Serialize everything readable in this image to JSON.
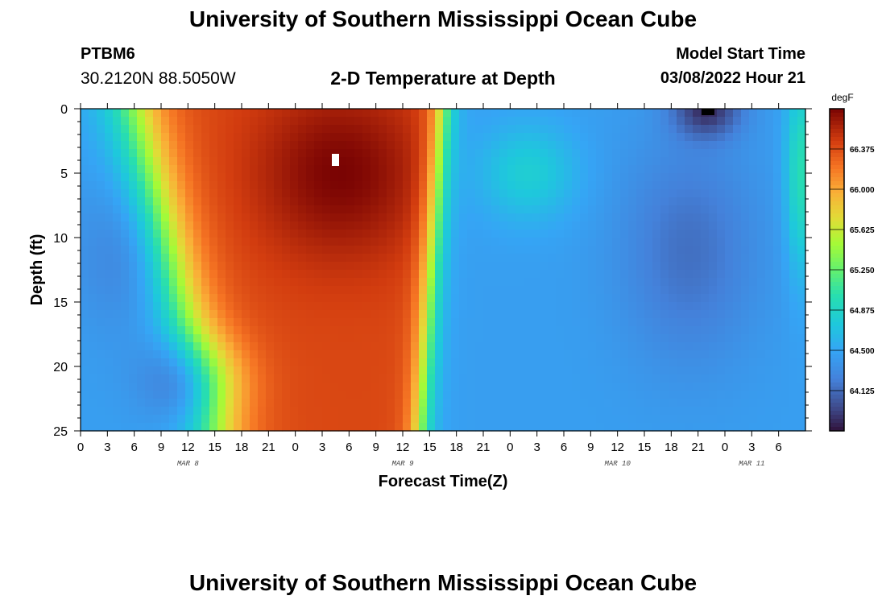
{
  "header": {
    "title": "University of Southern Mississippi Ocean Cube",
    "station_id": "PTBM6",
    "station_coords": "30.2120N  88.5050W",
    "chart_title": "2-D Temperature at Depth",
    "model_start_label": "Model Start Time",
    "model_start_value": "03/08/2022 Hour 21"
  },
  "footer": {
    "title": "University of Southern Mississippi Ocean Cube"
  },
  "chart_data": {
    "type": "heatmap",
    "xlabel": "Forecast Time(Z)",
    "ylabel": "Depth (ft)",
    "x_tick_labels": [
      "0",
      "3",
      "6",
      "9",
      "12",
      "15",
      "18",
      "21",
      "0",
      "3",
      "6",
      "9",
      "12",
      "15",
      "18",
      "21",
      "0",
      "3",
      "6",
      "9",
      "12",
      "15",
      "18",
      "21",
      "0",
      "3",
      "6"
    ],
    "date_labels": [
      {
        "label": "MAR 8",
        "tick_index": 4
      },
      {
        "label": "MAR 9",
        "tick_index": 12
      },
      {
        "label": "MAR 10",
        "tick_index": 20
      },
      {
        "label": "MAR 11",
        "tick_index": 25
      }
    ],
    "y_ticks": [
      0,
      5,
      10,
      15,
      20,
      25
    ],
    "ylim": [
      0,
      25
    ],
    "colorbar": {
      "unit": "degF",
      "min": 63.75,
      "max": 66.75,
      "tick_labels": [
        "66.375",
        "66.000",
        "65.625",
        "65.250",
        "64.875",
        "64.500",
        "64.125"
      ],
      "tick_values": [
        66.375,
        66.0,
        65.625,
        65.25,
        64.875,
        64.5,
        64.125
      ],
      "colormap": "turbo"
    },
    "field_description": "Temperature (degF) by forecast hour (0-81 from model start) and depth (0-25 ft)",
    "features": [
      {
        "region": "forecast hours 9-39, depth 0-25 ft",
        "value_range": [
          65.7,
          66.6
        ],
        "note": "warm core, max near depth 4-6 ft around hour 30"
      },
      {
        "region": "forecast hours 40-81, depth 0-25 ft",
        "value_range": [
          63.9,
          65.0
        ],
        "note": "cool water"
      },
      {
        "region": "forecast hours 9-18, depth 18-24 ft",
        "value_range": [
          64.1,
          64.3
        ],
        "note": "cool pocket"
      },
      {
        "region": "forecast hours 67-72, depth 0-3 ft",
        "value_range": [
          63.8,
          64.0
        ],
        "note": "coldest surface water"
      }
    ]
  }
}
